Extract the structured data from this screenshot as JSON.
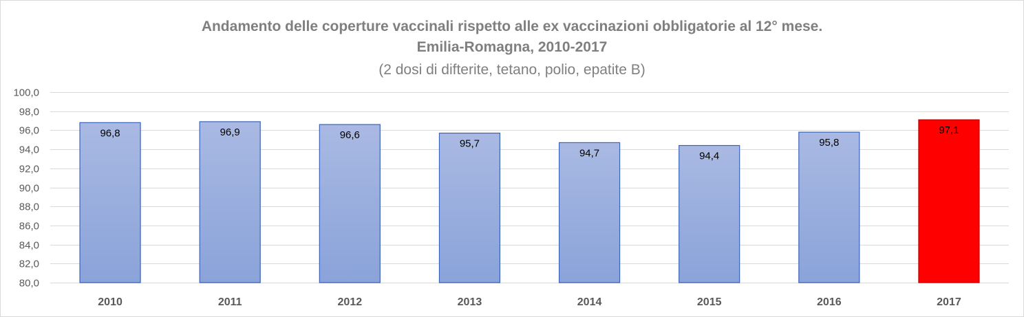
{
  "chart_data": {
    "type": "bar",
    "title_lines": [
      "Andamento delle coperture vaccinali rispetto alle ex vaccinazioni obbligatorie al 12° mese.",
      "Emilia-Romagna, 2010-2017",
      "(2 dosi di difterite, tetano, polio, epatite B)"
    ],
    "categories": [
      "2010",
      "2011",
      "2012",
      "2013",
      "2014",
      "2015",
      "2016",
      "2017"
    ],
    "values": [
      96.8,
      96.9,
      96.6,
      95.7,
      94.7,
      94.4,
      95.8,
      97.1
    ],
    "data_labels": [
      "96,8",
      "96,9",
      "96,6",
      "95,7",
      "94,7",
      "94,4",
      "95,8",
      "97,1"
    ],
    "ylim": [
      80,
      100
    ],
    "yticks": [
      80,
      82,
      84,
      86,
      88,
      90,
      92,
      94,
      96,
      98,
      100
    ],
    "ytick_labels": [
      "80,0",
      "82,0",
      "84,0",
      "86,0",
      "88,0",
      "90,0",
      "92,0",
      "94,0",
      "96,0",
      "98,0",
      "100,0"
    ],
    "xlabel": "",
    "ylabel": "",
    "grid": true,
    "legend": "none",
    "colors": {
      "bar_top": "#a9b9e3",
      "bar_bottom": "#8aa3d9",
      "bar_border": "#3a62b8",
      "highlight_fill": "#ff0000",
      "highlight_border": "#c00000",
      "highlight_category": "2017",
      "grid": "#d9d9d9",
      "axis_text": "#595959",
      "title_text": "#7f7f7f"
    }
  }
}
